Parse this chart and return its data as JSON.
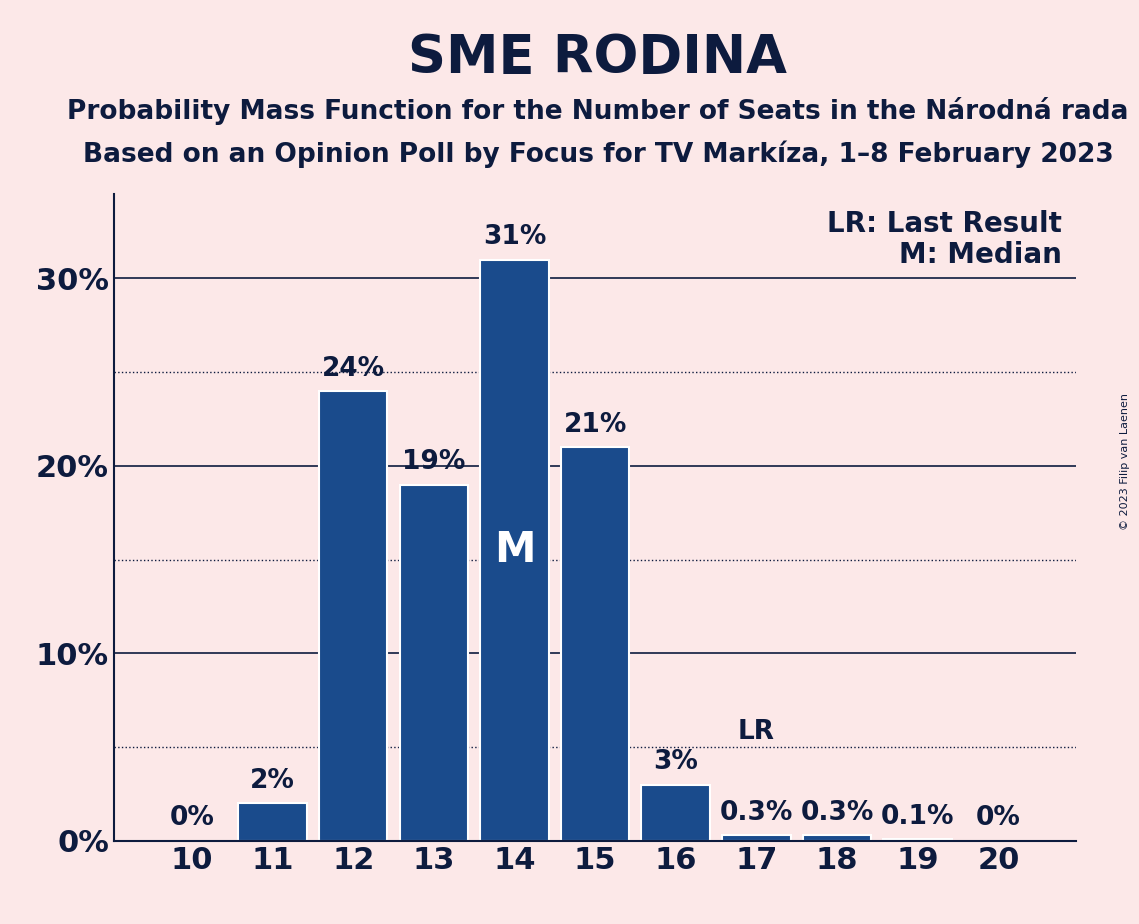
{
  "title": "SME RODINA",
  "subtitle1": "Probability Mass Function for the Number of Seats in the Národná rada",
  "subtitle2": "Based on an Opinion Poll by Focus for TV Markíza, 1–8 February 2023",
  "copyright": "© 2023 Filip van Laenen",
  "categories": [
    10,
    11,
    12,
    13,
    14,
    15,
    16,
    17,
    18,
    19,
    20
  ],
  "values": [
    0.0,
    0.02,
    0.24,
    0.19,
    0.31,
    0.21,
    0.03,
    0.003,
    0.003,
    0.001,
    0.0
  ],
  "labels": [
    "0%",
    "2%",
    "24%",
    "19%",
    "31%",
    "21%",
    "3%",
    "0.3%",
    "0.3%",
    "0.1%",
    "0%"
  ],
  "bar_color": "#1a4b8c",
  "background_color": "#fce8e8",
  "median_bar": 14,
  "lr_bar": 17,
  "ylim": [
    0,
    0.345
  ],
  "yticks": [
    0.0,
    0.1,
    0.2,
    0.3
  ],
  "ytick_labels": [
    "0%",
    "10%",
    "20%",
    "30%"
  ],
  "dotted_lines": [
    0.05,
    0.15,
    0.25
  ],
  "title_fontsize": 38,
  "subtitle_fontsize": 19,
  "label_fontsize": 19,
  "axis_fontsize": 22,
  "legend_fontsize": 20
}
